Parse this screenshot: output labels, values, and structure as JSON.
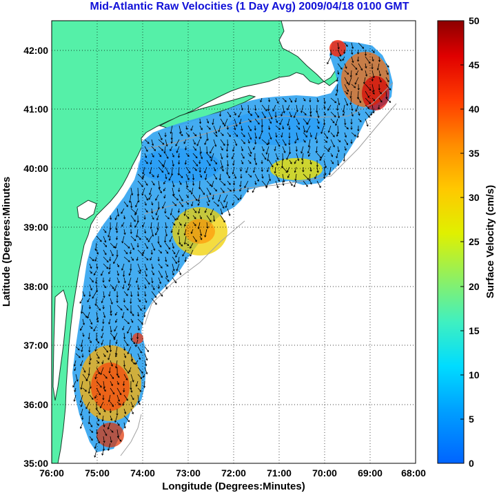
{
  "title": "Mid-Atlantic Raw Velocities (1 Day Avg) 2009/04/18 0100 GMT",
  "x_axis": {
    "label": "Longitude (Degrees:Minutes)",
    "ticks": [
      "76:00",
      "75:00",
      "74:00",
      "73:00",
      "72:00",
      "71:00",
      "70:00",
      "69:00",
      "68:00"
    ]
  },
  "y_axis": {
    "label": "Latitude (Degrees:Minutes",
    "ticks": [
      "42:00",
      "41:00",
      "40:00",
      "39:00",
      "38:00",
      "37:00",
      "36:00",
      "35:00"
    ]
  },
  "colorbar": {
    "label": "Surface Velocity (cm/s)",
    "ticks": [
      "50",
      "45",
      "40",
      "35",
      "30",
      "25",
      "20",
      "15",
      "10",
      "5",
      "0"
    ],
    "range": [
      0,
      50
    ]
  },
  "colors": {
    "title": "#1010d8",
    "land": "#55f0a8",
    "ocean": "#ffffff"
  },
  "map": {
    "lon_range": [
      -76,
      -68
    ],
    "lat_range": [
      35,
      42.5
    ],
    "grid": "dotted"
  }
}
